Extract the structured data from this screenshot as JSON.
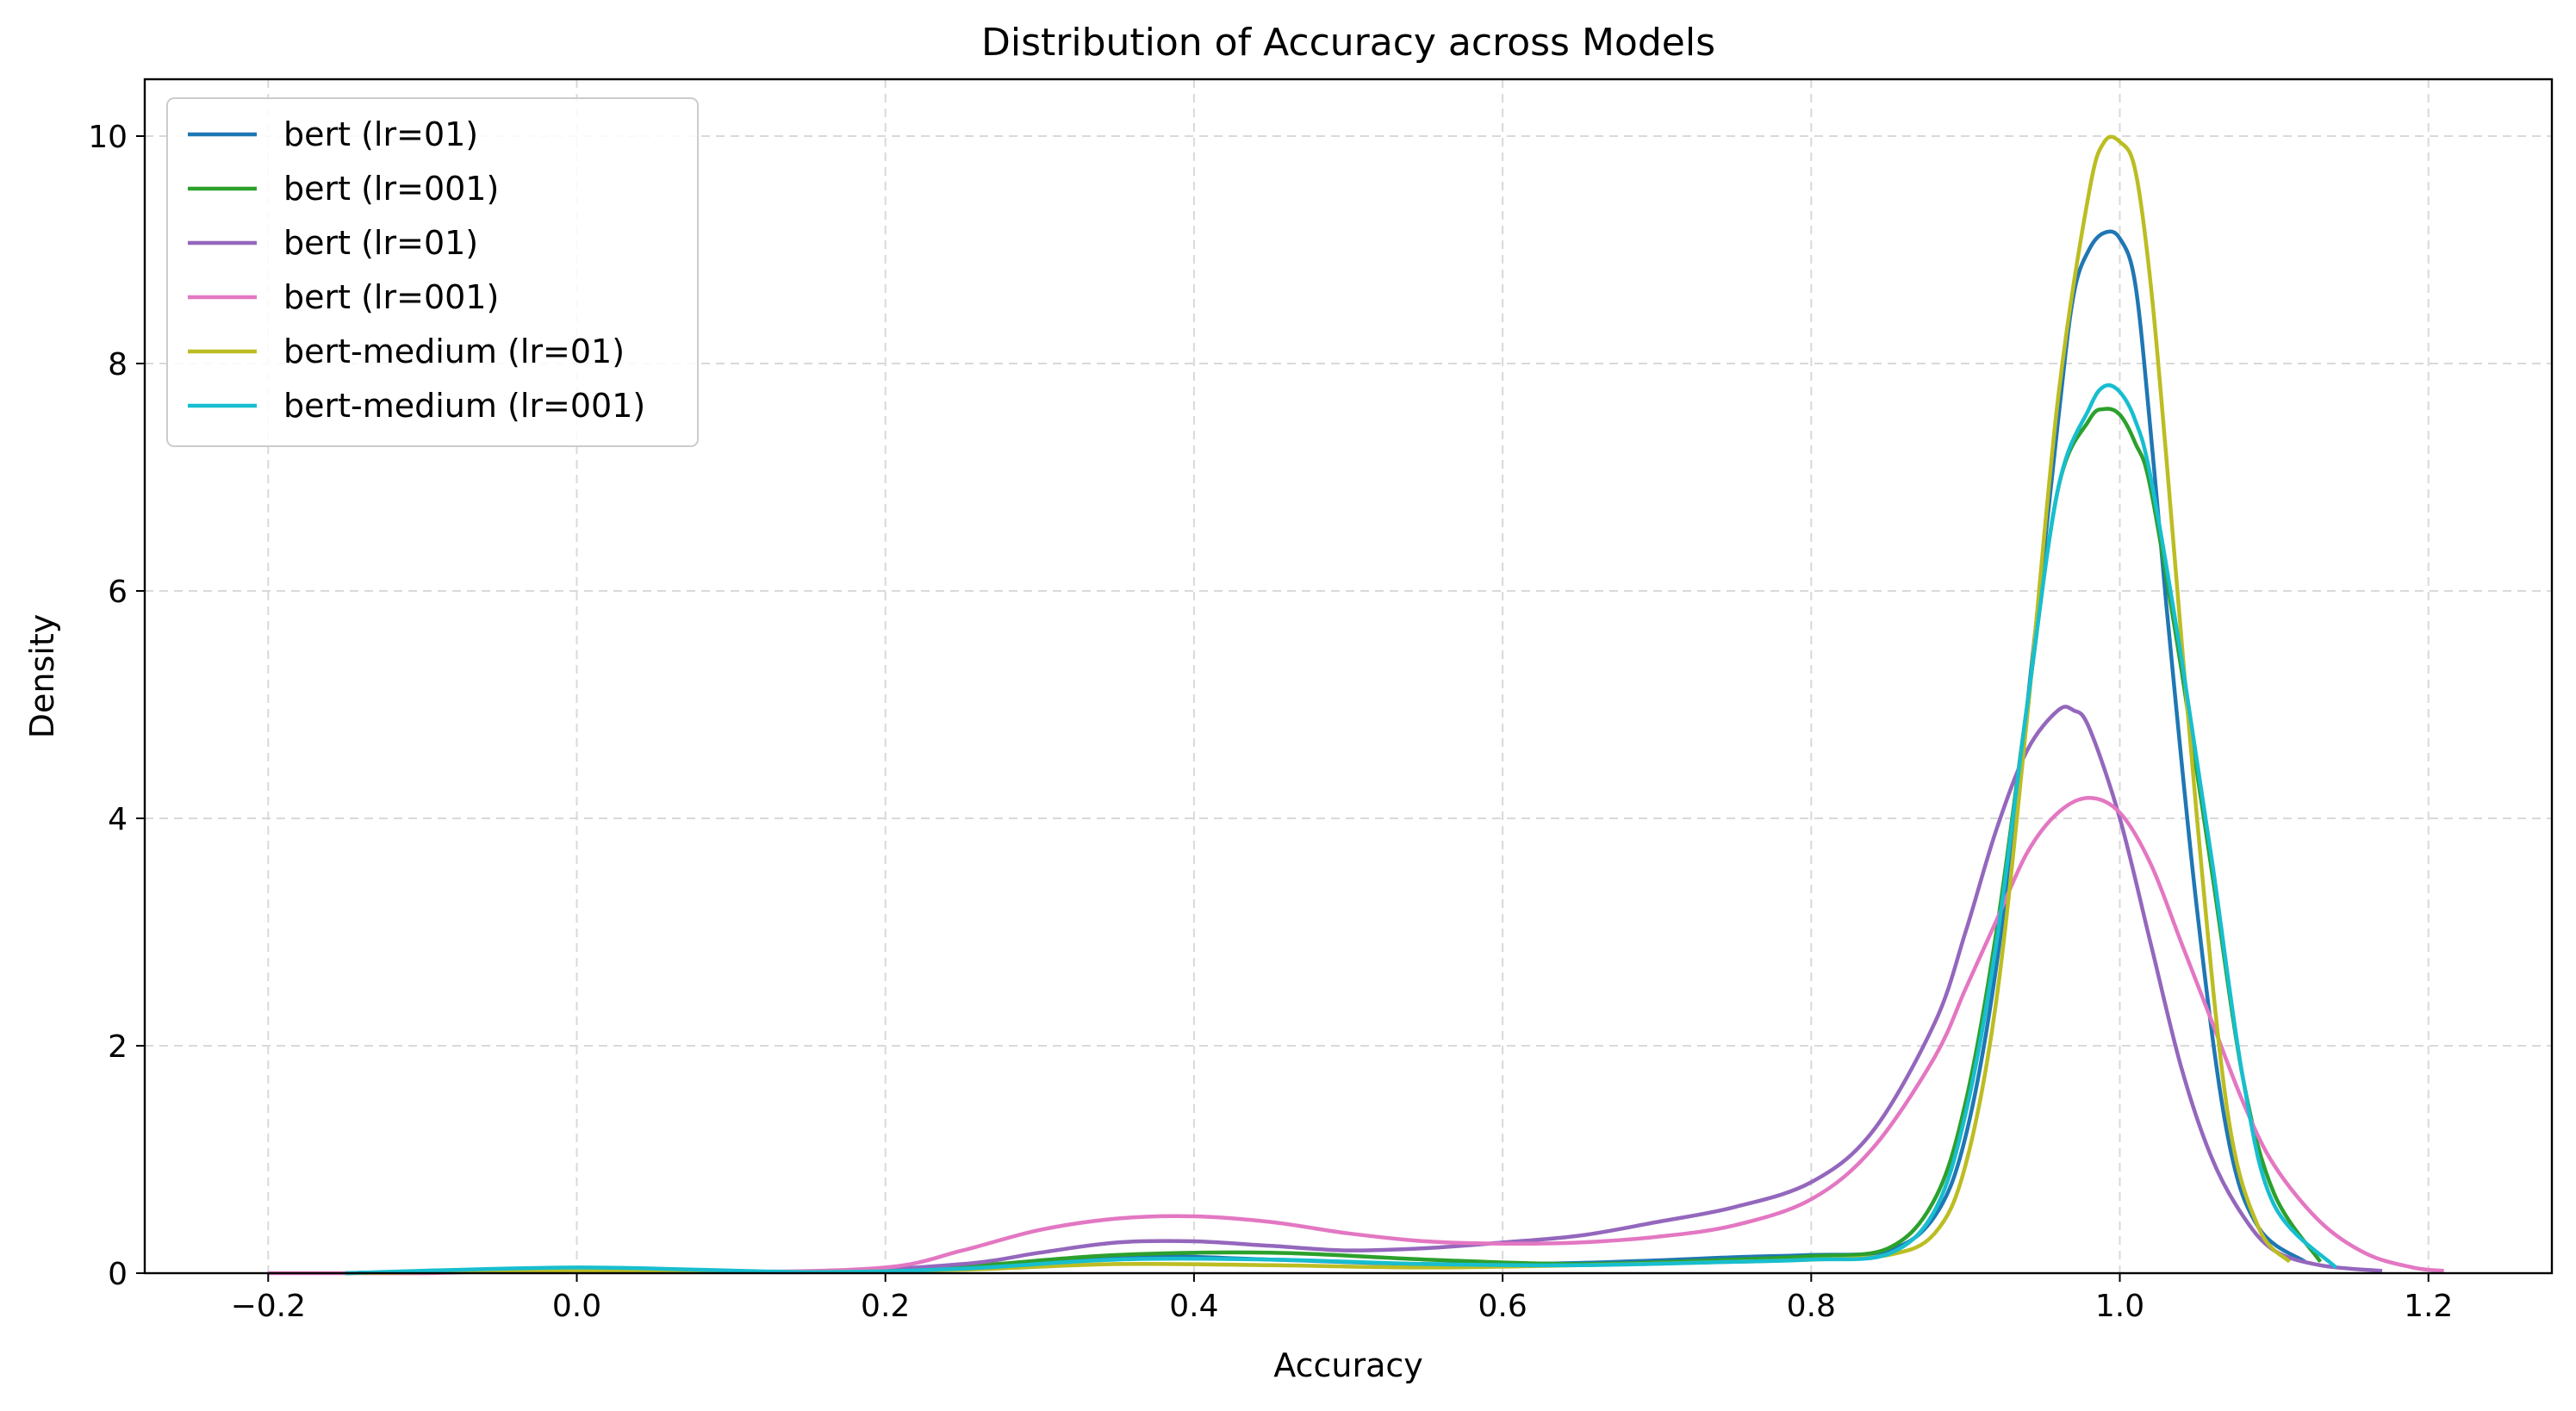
{
  "chart_data": {
    "type": "line",
    "title": "Distribution of Accuracy across Models",
    "xlabel": "Accuracy",
    "ylabel": "Density",
    "xlim": [
      -0.28,
      1.28
    ],
    "ylim": [
      0,
      10.5
    ],
    "xticks": [
      -0.2,
      0.0,
      0.2,
      0.4,
      0.6,
      0.8,
      1.0,
      1.2
    ],
    "xtick_labels": [
      "−0.2",
      "0.0",
      "0.2",
      "0.4",
      "0.6",
      "0.8",
      "1.0",
      "1.2"
    ],
    "yticks": [
      0,
      2,
      4,
      6,
      8,
      10
    ],
    "ytick_labels": [
      "0",
      "2",
      "4",
      "6",
      "8",
      "10"
    ],
    "grid": true,
    "legend_position": "top-left",
    "series": [
      {
        "name": "bert (lr=01)",
        "color": "#1f77b4",
        "x": [
          -0.15,
          0.0,
          0.15,
          0.25,
          0.35,
          0.45,
          0.55,
          0.65,
          0.75,
          0.8,
          0.85,
          0.88,
          0.9,
          0.92,
          0.94,
          0.96,
          0.97,
          0.98,
          0.99,
          1.0,
          1.01,
          1.02,
          1.03,
          1.05,
          1.07,
          1.09,
          1.12
        ],
        "y": [
          0.0,
          0.04,
          0.01,
          0.05,
          0.15,
          0.12,
          0.08,
          0.09,
          0.14,
          0.16,
          0.2,
          0.5,
          1.2,
          2.7,
          5.0,
          7.5,
          8.6,
          9.0,
          9.15,
          9.1,
          8.7,
          7.4,
          5.9,
          3.2,
          1.2,
          0.4,
          0.1
        ]
      },
      {
        "name": "bert (lr=001)",
        "color": "#2ca02c",
        "x": [
          -0.15,
          0.0,
          0.15,
          0.25,
          0.35,
          0.45,
          0.55,
          0.65,
          0.75,
          0.8,
          0.85,
          0.88,
          0.9,
          0.92,
          0.94,
          0.96,
          0.98,
          0.99,
          1.0,
          1.01,
          1.02,
          1.04,
          1.06,
          1.08,
          1.1,
          1.13
        ],
        "y": [
          0.0,
          0.03,
          0.01,
          0.06,
          0.16,
          0.18,
          0.12,
          0.08,
          0.12,
          0.15,
          0.22,
          0.65,
          1.5,
          3.0,
          5.0,
          6.9,
          7.5,
          7.6,
          7.55,
          7.3,
          6.9,
          5.3,
          3.5,
          1.7,
          0.7,
          0.1
        ]
      },
      {
        "name": "bert (lr=01)",
        "color": "#9467bd",
        "x": [
          -0.15,
          0.0,
          0.15,
          0.25,
          0.3,
          0.35,
          0.4,
          0.45,
          0.5,
          0.55,
          0.6,
          0.65,
          0.7,
          0.75,
          0.8,
          0.84,
          0.88,
          0.9,
          0.92,
          0.94,
          0.96,
          0.97,
          0.98,
          1.0,
          1.02,
          1.04,
          1.06,
          1.08,
          1.1,
          1.13,
          1.17
        ],
        "y": [
          0.0,
          0.03,
          0.01,
          0.08,
          0.18,
          0.27,
          0.28,
          0.24,
          0.2,
          0.22,
          0.27,
          0.33,
          0.45,
          0.58,
          0.8,
          1.25,
          2.2,
          3.0,
          3.9,
          4.6,
          4.95,
          4.95,
          4.8,
          4.0,
          2.9,
          1.8,
          1.0,
          0.5,
          0.2,
          0.07,
          0.02
        ]
      },
      {
        "name": "bert (lr=001)",
        "color": "#e377c2",
        "x": [
          -0.2,
          -0.1,
          0.0,
          0.1,
          0.2,
          0.25,
          0.3,
          0.35,
          0.4,
          0.45,
          0.5,
          0.55,
          0.6,
          0.65,
          0.7,
          0.75,
          0.8,
          0.84,
          0.88,
          0.9,
          0.92,
          0.94,
          0.96,
          0.98,
          1.0,
          1.02,
          1.04,
          1.06,
          1.08,
          1.1,
          1.13,
          1.16,
          1.19,
          1.21
        ],
        "y": [
          0.0,
          0.0,
          0.03,
          0.01,
          0.05,
          0.2,
          0.38,
          0.48,
          0.5,
          0.45,
          0.35,
          0.28,
          0.26,
          0.27,
          0.32,
          0.42,
          0.65,
          1.1,
          1.9,
          2.5,
          3.1,
          3.7,
          4.05,
          4.18,
          4.05,
          3.6,
          2.9,
          2.2,
          1.5,
          0.95,
          0.45,
          0.17,
          0.05,
          0.02
        ]
      },
      {
        "name": "bert-medium (lr=01)",
        "color": "#bcbd22",
        "x": [
          -0.15,
          0.0,
          0.15,
          0.25,
          0.35,
          0.45,
          0.55,
          0.65,
          0.75,
          0.8,
          0.85,
          0.88,
          0.9,
          0.92,
          0.94,
          0.96,
          0.98,
          0.99,
          1.0,
          1.01,
          1.02,
          1.03,
          1.05,
          1.07,
          1.09,
          1.11
        ],
        "y": [
          0.0,
          0.02,
          0.01,
          0.03,
          0.08,
          0.07,
          0.05,
          0.07,
          0.1,
          0.12,
          0.16,
          0.35,
          0.95,
          2.4,
          4.9,
          7.7,
          9.5,
          9.95,
          9.95,
          9.7,
          8.7,
          7.2,
          4.0,
          1.4,
          0.4,
          0.1
        ]
      },
      {
        "name": "bert-medium (lr=001)",
        "color": "#17becf",
        "x": [
          -0.15,
          0.0,
          0.15,
          0.25,
          0.35,
          0.45,
          0.55,
          0.65,
          0.75,
          0.8,
          0.85,
          0.88,
          0.9,
          0.92,
          0.94,
          0.96,
          0.98,
          0.99,
          1.0,
          1.01,
          1.02,
          1.04,
          1.06,
          1.08,
          1.1,
          1.14
        ],
        "y": [
          0.0,
          0.05,
          0.01,
          0.04,
          0.12,
          0.12,
          0.08,
          0.07,
          0.1,
          0.12,
          0.17,
          0.55,
          1.4,
          2.9,
          5.0,
          6.9,
          7.6,
          7.8,
          7.75,
          7.5,
          7.0,
          5.4,
          3.6,
          1.7,
          0.6,
          0.05
        ]
      }
    ]
  }
}
